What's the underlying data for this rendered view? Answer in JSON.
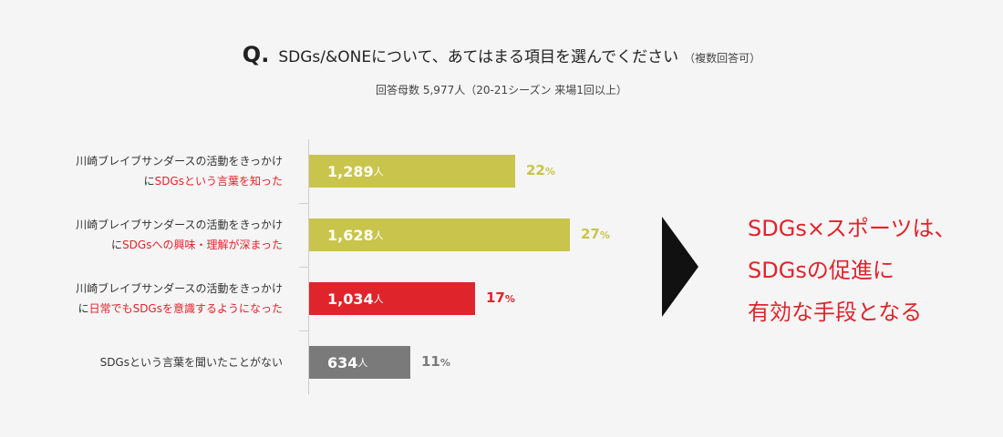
{
  "question": {
    "mark": "Q.",
    "text": "SDGs/&ONEについて、あてはまる項目を選んでください",
    "note": "（複数回答可）",
    "subtitle": "回答母数 5,977人（20-21シーズン 来場1回以上）"
  },
  "chart_data": {
    "type": "bar",
    "orientation": "horizontal",
    "categories": [
      "川崎ブレイブサンダースの活動をきっかけにSDGsという言葉を知った",
      "川崎ブレイブサンダースの活動をきっかけにSDGsへの興味・理解が深まった",
      "川崎ブレイブサンダースの活動をきっかけに日常でもSDGsを意識するようになった",
      "SDGsという言葉を聞いたことがない"
    ],
    "series": [
      {
        "values": [
          1289,
          1628,
          1034,
          634
        ]
      }
    ],
    "value_labels": [
      "1,289",
      "1,628",
      "1,034",
      "634"
    ],
    "value_unit": "人",
    "percentages": [
      22,
      27,
      17,
      11
    ],
    "percent_labels": [
      "22",
      "27",
      "17",
      "11"
    ],
    "percent_sign": "%",
    "bar_colors": [
      "#c9c44c",
      "#c9c44c",
      "#e0242c",
      "#7a7a7a"
    ],
    "percent_colors": [
      "#c9c44c",
      "#c9c44c",
      "#e0242c",
      "#7a7a7a"
    ],
    "grid": false
  },
  "rows": [
    {
      "line1": "川崎ブレイブサンダースの活動をきっかけ",
      "prefix": "に",
      "highlight": "SDGsという言葉を知った",
      "single": ""
    },
    {
      "line1": "川崎ブレイブサンダースの活動をきっかけ",
      "prefix": "に",
      "highlight": "SDGsへの興味・理解が深まった",
      "single": ""
    },
    {
      "line1": "川崎ブレイブサンダースの活動をきっかけ",
      "prefix": "に",
      "highlight": "日常でもSDGsを意識するようになった",
      "single": ""
    },
    {
      "line1": "",
      "prefix": "",
      "highlight": "",
      "single": "SDGsという言葉を聞いたことがない"
    }
  ],
  "conclusion": {
    "lines": [
      "SDGs×スポーツは、",
      "SDGsの促進に",
      "有効な手段となる"
    ]
  },
  "colors": {
    "accent_red": "#e0242c",
    "olive": "#c9c44c",
    "gray": "#7a7a7a",
    "background": "#f5f5f5"
  }
}
